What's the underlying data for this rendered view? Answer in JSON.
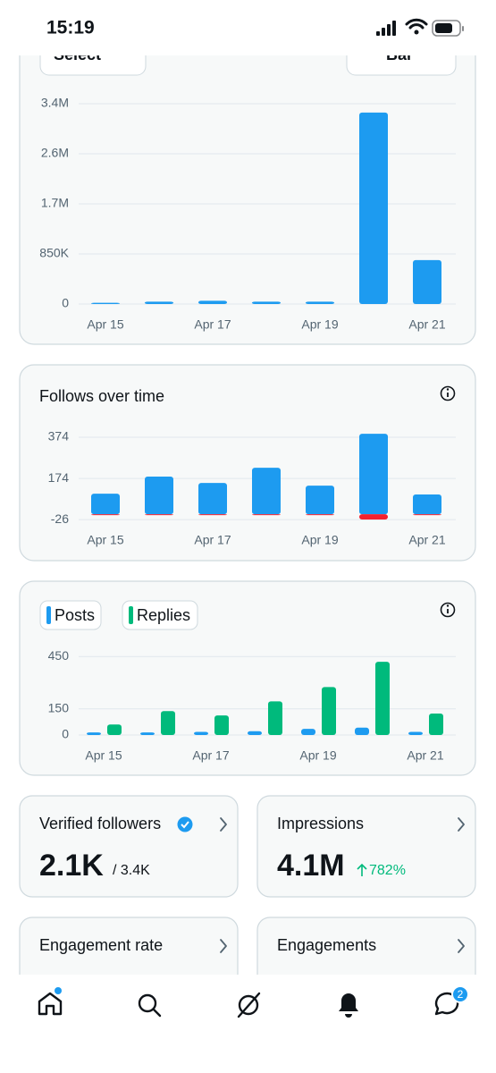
{
  "status_bar": {
    "time": "15:19"
  },
  "controls": {
    "select": "Select",
    "chart_type": "Bar"
  },
  "chart_data": [
    {
      "type": "bar",
      "categories": [
        "Apr 15",
        null,
        "Apr 17",
        null,
        "Apr 19",
        null,
        "Apr 21"
      ],
      "values": [
        20000,
        40000,
        55000,
        40000,
        40000,
        3250000,
        745000
      ],
      "color": "#1d9bf0",
      "ylim": [
        0,
        3400000
      ],
      "yticks": [
        0,
        {
          "value": 850000,
          "label": "850K"
        },
        {
          "value": 1700000,
          "label": "1.7M"
        },
        {
          "value": 2550000,
          "label": "2.6M"
        },
        {
          "value": 3400000,
          "label": "3.4M"
        }
      ],
      "grid": true
    },
    {
      "type": "bar",
      "title": "Follows over time",
      "categories": [
        "Apr 15",
        null,
        "Apr 17",
        null,
        "Apr 19",
        null,
        "Apr 21"
      ],
      "series": [
        {
          "color": "#1d9bf0",
          "values": [
            100,
            183,
            152,
            226,
            139,
            391,
            96
          ]
        },
        {
          "color": "#f4212e",
          "values": [
            -3,
            -3,
            -1,
            -3,
            -4,
            -25,
            -2
          ]
        }
      ],
      "ylim": [
        -40,
        400
      ],
      "yticks": [
        -26,
        174,
        374
      ],
      "grid": true
    },
    {
      "type": "bar",
      "categories": [
        "Apr 15",
        null,
        "Apr 17",
        null,
        "Apr 19",
        null,
        "Apr 21"
      ],
      "series": [
        {
          "name": "Posts",
          "color": "#1d9bf0",
          "values": [
            15,
            15,
            18,
            22,
            35,
            42,
            18
          ]
        },
        {
          "name": "Replies",
          "color": "#00ba7c",
          "values": [
            60,
            137,
            112,
            193,
            275,
            420,
            123
          ]
        }
      ],
      "ylim": [
        0,
        460
      ],
      "yticks": [
        0,
        150,
        450
      ],
      "grid": true
    }
  ],
  "cards": [
    {
      "title": "Verified followers",
      "value": "2.1K",
      "total": "/ 3.4K"
    },
    {
      "title": "Impressions",
      "value": "4.1M",
      "change": "782%"
    },
    {
      "title": "Engagement rate"
    },
    {
      "title": "Engagements"
    }
  ],
  "nav": {
    "messages_badge": "2"
  }
}
